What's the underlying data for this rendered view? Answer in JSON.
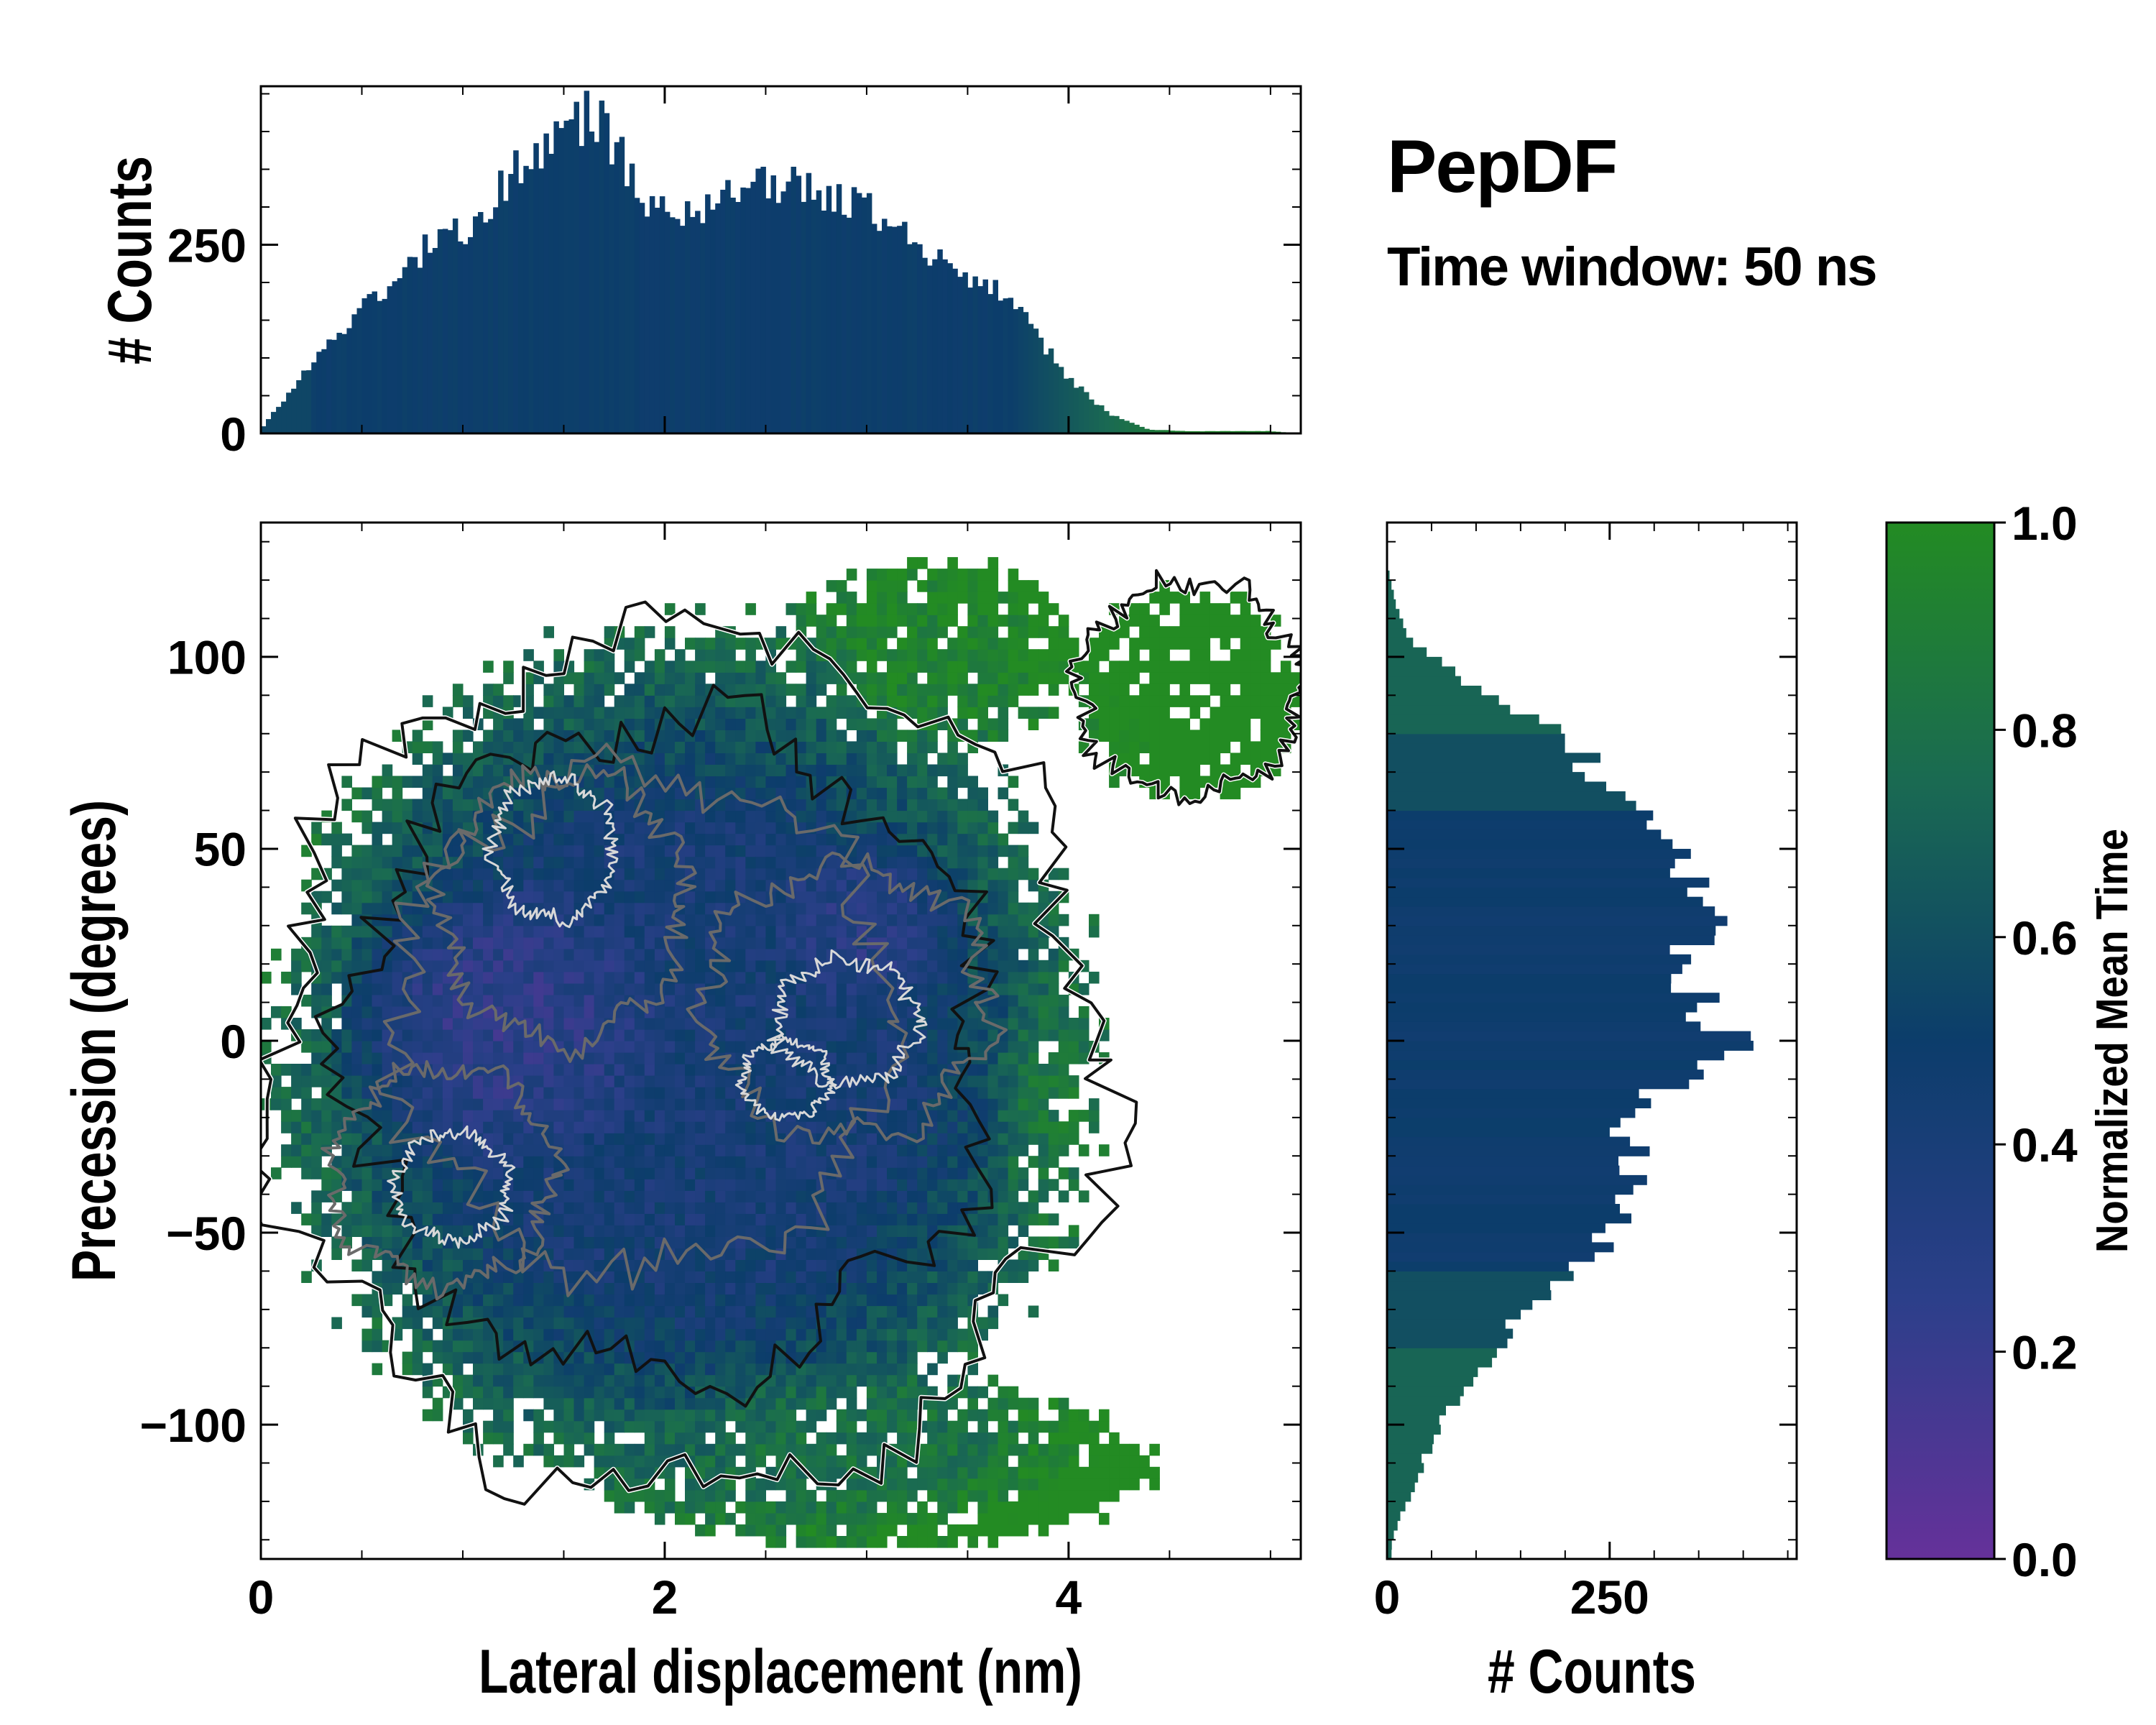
{
  "title": "PepDF",
  "subtitle": "Time window: 50 ns",
  "colors": {
    "purple": "#65319a",
    "navy": "#0c3d6b",
    "green": "#238b23",
    "contour_black": "#111111",
    "contour_gray": "#6a6a6a",
    "contour_light": "#d8d8d8"
  },
  "chart_data": [
    {
      "id": "top-histogram",
      "type": "bar",
      "title": "",
      "xlabel": "",
      "ylabel": "# Counts",
      "xlim": [
        0,
        5.15
      ],
      "ylim": [
        0,
        460
      ],
      "yticks": [
        0,
        250
      ],
      "ytick_labels": [
        "0",
        "250"
      ],
      "bin_width": 0.025,
      "profile_x": [
        0,
        0.1,
        0.3,
        0.6,
        0.8,
        1.0,
        1.2,
        1.4,
        1.6,
        1.7,
        1.85,
        2.0,
        2.2,
        2.4,
        2.6,
        2.8,
        3.0,
        3.2,
        3.4,
        3.6,
        3.8,
        4.0,
        4.2,
        4.4,
        4.6,
        5.0,
        5.15
      ],
      "profile_counts": [
        5,
        40,
        110,
        190,
        240,
        270,
        330,
        380,
        420,
        410,
        330,
        285,
        300,
        320,
        330,
        320,
        300,
        265,
        225,
        200,
        145,
        75,
        25,
        5,
        3,
        3,
        0
      ],
      "color_mode": "navy to green toward tails (normalized mean time)"
    },
    {
      "id": "right-histogram",
      "type": "bar",
      "orientation": "horizontal",
      "xlabel": "# Counts",
      "ylabel": "",
      "xlim": [
        0,
        460
      ],
      "ylim": [
        -135,
        135
      ],
      "xticks": [
        0,
        250
      ],
      "xtick_labels": [
        "0",
        "250"
      ],
      "bin_width": 2.5,
      "profile_y": [
        -130,
        -110,
        -100,
        -90,
        -70,
        -55,
        -35,
        -20,
        -10,
        -3,
        5,
        15,
        25,
        40,
        50,
        65,
        80,
        95,
        105,
        115,
        125
      ],
      "profile_counts": [
        5,
        40,
        60,
        90,
        150,
        230,
        275,
        260,
        320,
        400,
        370,
        330,
        350,
        360,
        330,
        250,
        200,
        80,
        25,
        8,
        0
      ]
    },
    {
      "id": "main-heatmap",
      "type": "heatmap",
      "title": "",
      "xlabel": "Lateral displacement (nm)",
      "ylabel": "Precession (degrees)",
      "xlim": [
        0,
        5.15
      ],
      "ylim": [
        -135,
        135
      ],
      "xticks": [
        0,
        2,
        4
      ],
      "xtick_labels": [
        "0",
        "2",
        "4"
      ],
      "yticks": [
        -100,
        -50,
        0,
        50,
        100
      ],
      "ytick_labels": [
        "−100",
        "−50",
        "0",
        "50",
        "100"
      ],
      "cell_size": [
        0.05,
        3.0
      ],
      "region": {
        "center": [
          2.1,
          -5
        ],
        "radii": [
          2.0,
          110
        ],
        "extensions": [
          {
            "center": [
              3.3,
              100
            ],
            "radii": [
              0.75,
              25
            ]
          },
          {
            "center": [
              4.6,
              90
            ],
            "radii": [
              0.55,
              28
            ]
          },
          {
            "center": [
              3.0,
              -110
            ],
            "radii": [
              1.4,
              22
            ]
          }
        ]
      },
      "color_zones": [
        {
          "center": [
            1.2,
            5
          ],
          "radii": [
            0.9,
            40
          ],
          "value": 0.25
        },
        {
          "center": [
            3.0,
            30
          ],
          "radii": [
            0.5,
            25
          ],
          "value": 0.3
        },
        {
          "center": [
            3.4,
            100
          ],
          "radii": [
            0.7,
            25
          ],
          "value": 0.95
        },
        {
          "center": [
            4.0,
            -20
          ],
          "radii": [
            0.4,
            45
          ],
          "value": 0.85
        },
        {
          "center": [
            3.0,
            -105
          ],
          "radii": [
            1.1,
            22
          ],
          "value": 0.8
        },
        {
          "center": [
            0.2,
            60
          ],
          "radii": [
            0.25,
            25
          ],
          "value": 0.85
        }
      ],
      "contour_levels": [
        {
          "value": 0.5,
          "color": "contour_black"
        },
        {
          "value": 0.7,
          "color": "contour_gray"
        },
        {
          "value": 0.85,
          "color": "contour_light"
        }
      ]
    },
    {
      "id": "colorbar",
      "type": "colorbar",
      "label": "Normalized Mean Time",
      "range": [
        0,
        1
      ],
      "ticks": [
        0.0,
        0.2,
        0.4,
        0.6,
        0.8,
        1.0
      ],
      "tick_labels": [
        "0.0",
        "0.2",
        "0.4",
        "0.6",
        "0.8",
        "1.0"
      ],
      "stops": [
        "#65319a",
        "#2c3f8a",
        "#0c3d6b",
        "#1a6a52",
        "#238b23"
      ]
    }
  ]
}
